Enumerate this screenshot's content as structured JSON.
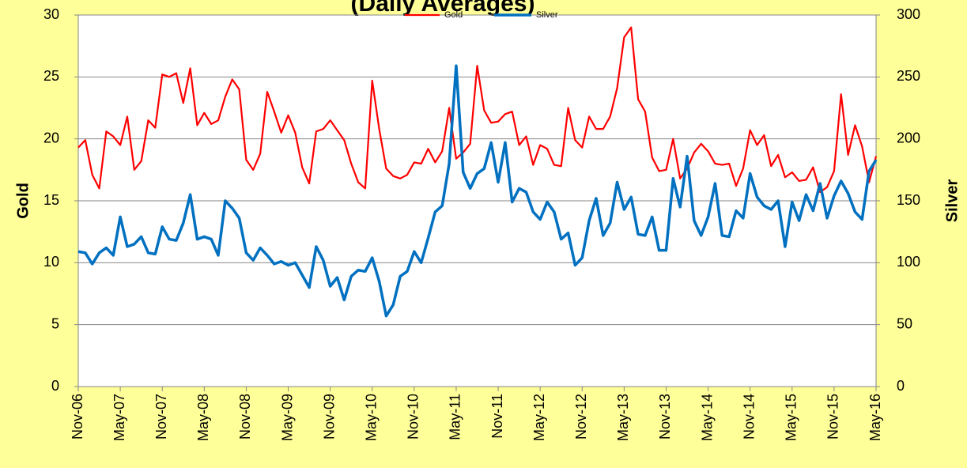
{
  "chart_data": {
    "type": "line",
    "title": "(Daily Averages)",
    "y_label": "Gold",
    "y2_label": "Silver",
    "categories": [
      "Nov-06",
      null,
      null,
      null,
      null,
      null,
      "May-07",
      null,
      null,
      null,
      null,
      null,
      "Nov-07",
      null,
      null,
      null,
      null,
      null,
      "May-08",
      null,
      null,
      null,
      null,
      null,
      "Nov-08",
      null,
      null,
      null,
      null,
      null,
      "May-09",
      null,
      null,
      null,
      null,
      null,
      "Nov-09",
      null,
      null,
      null,
      null,
      null,
      "May-10",
      null,
      null,
      null,
      null,
      null,
      "Nov-10",
      null,
      null,
      null,
      null,
      null,
      "May-11",
      null,
      null,
      null,
      null,
      null,
      "Nov-11",
      null,
      null,
      null,
      null,
      null,
      "May-12",
      null,
      null,
      null,
      null,
      null,
      "Nov-12",
      null,
      null,
      null,
      null,
      null,
      "May-13",
      null,
      null,
      null,
      null,
      null,
      "Nov-13",
      null,
      null,
      null,
      null,
      null,
      "May-14",
      null,
      null,
      null,
      null,
      null,
      "Nov-14",
      null,
      null,
      null,
      null,
      null,
      "May-15",
      null,
      null,
      null,
      null,
      null,
      "Nov-15",
      null,
      null,
      null,
      null,
      null,
      "May-16"
    ],
    "series": [
      {
        "name": "Gold",
        "color": "#ff0000",
        "axis": "y",
        "values": [
          19.3,
          19.9,
          17.1,
          16.0,
          20.6,
          20.2,
          19.5,
          21.8,
          17.5,
          18.2,
          21.5,
          20.9,
          25.2,
          25.0,
          25.3,
          22.9,
          25.7,
          21.1,
          22.1,
          21.2,
          21.5,
          23.4,
          24.8,
          24.0,
          18.3,
          17.5,
          18.8,
          23.8,
          22.2,
          20.5,
          21.9,
          20.5,
          17.7,
          16.4,
          20.6,
          20.8,
          21.5,
          20.7,
          19.9,
          18.0,
          16.5,
          16.0,
          24.7,
          20.8,
          17.6,
          17.0,
          16.8,
          17.1,
          18.1,
          18.0,
          19.2,
          18.1,
          19.0,
          22.5,
          18.4,
          18.9,
          19.6,
          25.9,
          22.3,
          21.3,
          21.4,
          22.0,
          22.2,
          19.5,
          20.2,
          17.9,
          19.5,
          19.2,
          17.9,
          17.8,
          22.5,
          19.9,
          19.3,
          21.8,
          20.8,
          20.8,
          21.8,
          24.1,
          28.2,
          29.0,
          23.2,
          22.2,
          18.5,
          17.4,
          17.5,
          20.0,
          16.8,
          17.6,
          18.9,
          19.6,
          19.0,
          18.0,
          17.9,
          18.0,
          16.2,
          17.6,
          20.7,
          19.5,
          20.3,
          17.8,
          18.7,
          16.9,
          17.3,
          16.6,
          16.7,
          17.7,
          15.7,
          16.1,
          17.4,
          23.6,
          18.7,
          21.1,
          19.4,
          16.5,
          18.6
        ]
      },
      {
        "name": "Silver",
        "color": "#0070c0",
        "axis": "y2",
        "values": [
          109,
          108,
          99,
          108,
          112,
          106,
          137,
          113,
          115,
          121,
          108,
          107,
          129,
          119,
          118,
          132,
          155,
          119,
          121,
          119,
          106,
          150,
          144,
          136,
          108,
          102,
          112,
          106,
          99,
          101,
          98,
          100,
          90,
          80,
          113,
          102,
          81,
          88,
          70,
          89,
          94,
          93,
          104,
          85,
          57,
          66,
          89,
          93,
          109,
          100,
          120,
          141,
          146,
          180,
          259,
          173,
          160,
          172,
          176,
          197,
          165,
          197,
          149,
          160,
          157,
          141,
          135,
          149,
          141,
          119,
          124,
          98,
          104,
          134,
          152,
          122,
          132,
          165,
          143,
          153,
          123,
          122,
          137,
          110,
          110,
          168,
          145,
          186,
          134,
          122,
          137,
          164,
          122,
          121,
          142,
          136,
          172,
          153,
          146,
          143,
          150,
          113,
          149,
          134,
          155,
          142,
          164,
          136,
          154,
          166,
          156,
          141,
          135,
          174,
          183
        ]
      }
    ],
    "ylim": [
      0,
      30
    ],
    "yticks": [
      0,
      5,
      10,
      15,
      20,
      25,
      30
    ],
    "y2lim": [
      0,
      300
    ],
    "y2ticks": [
      0,
      50,
      100,
      150,
      200,
      250,
      300
    ],
    "grid": true,
    "legend": "top"
  }
}
